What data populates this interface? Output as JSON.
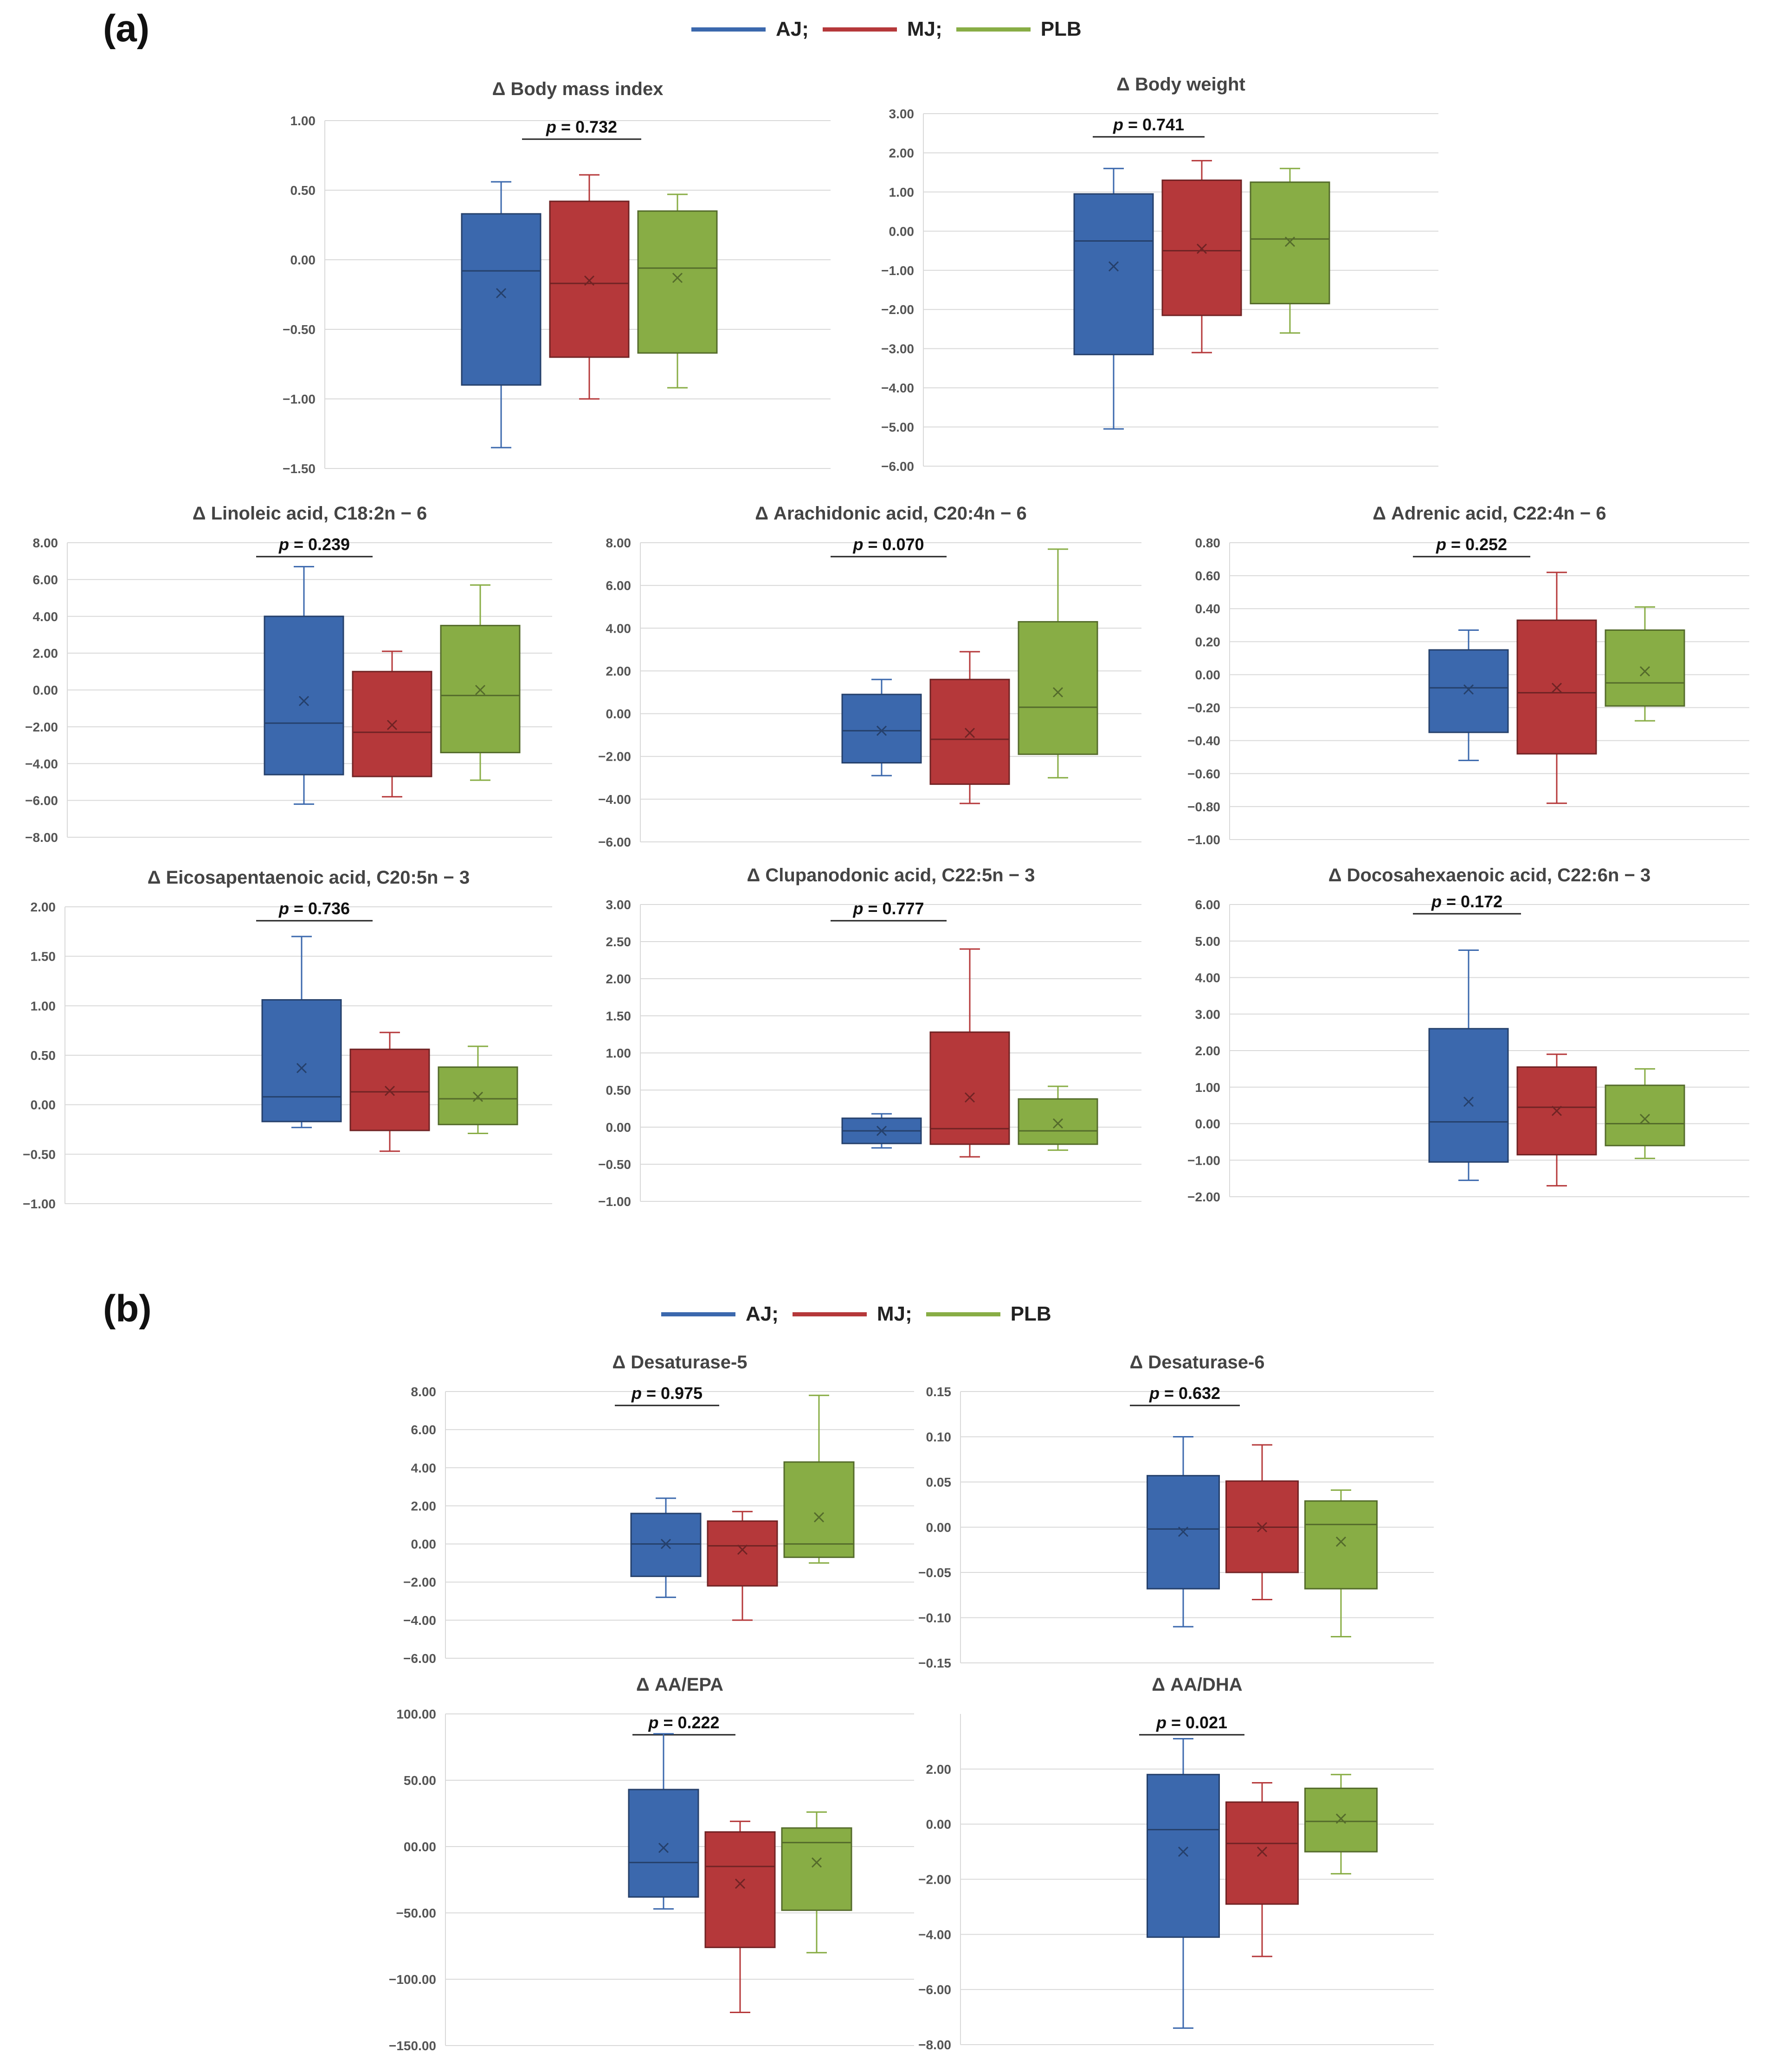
{
  "panels": {
    "a": "(a)",
    "b": "(b)"
  },
  "legend": {
    "items": [
      {
        "label": "AJ;",
        "color": "#3b68ad"
      },
      {
        "label": "MJ;",
        "color": "#b5383a"
      },
      {
        "label": "PLB",
        "color": "#88ad45"
      }
    ]
  },
  "chart_data": [
    {
      "type": "boxplot",
      "title": "Δ Body mass index",
      "p_label": "p",
      "p_value": "= 0.732",
      "ylim": [
        -1.5,
        1.0
      ],
      "ticks": [
        "1.00",
        "0.50",
        "0.00",
        "−0.50",
        "−1.00",
        "−1.50"
      ],
      "boxes": [
        {
          "group": "AJ",
          "min": -1.35,
          "q1": -0.9,
          "median": -0.08,
          "q3": 0.33,
          "max": 0.56,
          "mean": -0.24
        },
        {
          "group": "MJ",
          "min": -1.0,
          "q1": -0.7,
          "median": -0.17,
          "q3": 0.42,
          "max": 0.61,
          "mean": -0.15
        },
        {
          "group": "PLB",
          "min": -0.92,
          "q1": -0.67,
          "median": -0.06,
          "q3": 0.35,
          "max": 0.47,
          "mean": -0.13
        }
      ]
    },
    {
      "type": "boxplot",
      "title": "Δ Body weight",
      "p_label": "p",
      "p_value": "= 0.741",
      "ylim": [
        -6.0,
        3.0
      ],
      "ticks": [
        "3.00",
        "2.00",
        "1.00",
        "0.00",
        "−1.00",
        "−2.00",
        "−3.00",
        "−4.00",
        "−5.00",
        "−6.00"
      ],
      "boxes": [
        {
          "group": "AJ",
          "min": -5.05,
          "q1": -3.15,
          "median": -0.25,
          "q3": 0.95,
          "max": 1.6,
          "mean": -0.9
        },
        {
          "group": "MJ",
          "min": -3.1,
          "q1": -2.15,
          "median": -0.5,
          "q3": 1.3,
          "max": 1.8,
          "mean": -0.45
        },
        {
          "group": "PLB",
          "min": -2.6,
          "q1": -1.85,
          "median": -0.2,
          "q3": 1.25,
          "max": 1.6,
          "mean": -0.27
        }
      ]
    },
    {
      "type": "boxplot",
      "title": "Δ Linoleic acid, C18:2n − 6",
      "p_label": "p",
      "p_value": "= 0.239",
      "ylim": [
        -8.0,
        8.0
      ],
      "ticks": [
        "8.00",
        "6.00",
        "4.00",
        "2.00",
        "0.00",
        "−2.00",
        "−4.00",
        "−6.00",
        "−8.00"
      ],
      "boxes": [
        {
          "group": "AJ",
          "min": -6.2,
          "q1": -4.6,
          "median": -1.8,
          "q3": 4.0,
          "max": 6.7,
          "mean": -0.6
        },
        {
          "group": "MJ",
          "min": -5.8,
          "q1": -4.7,
          "median": -2.3,
          "q3": 1.0,
          "max": 2.1,
          "mean": -1.9
        },
        {
          "group": "PLB",
          "min": -4.9,
          "q1": -3.4,
          "median": -0.3,
          "q3": 3.5,
          "max": 5.7,
          "mean": 0.0
        }
      ]
    },
    {
      "type": "boxplot",
      "title": "Δ Arachidonic acid, C20:4n − 6",
      "p_label": "p",
      "p_value": "= 0.070",
      "ylim": [
        -6.0,
        8.0
      ],
      "ticks": [
        "8.00",
        "6.00",
        "4.00",
        "2.00",
        "0.00",
        "−2.00",
        "−4.00",
        "−6.00"
      ],
      "boxes": [
        {
          "group": "AJ",
          "min": -2.9,
          "q1": -2.3,
          "median": -0.8,
          "q3": 0.9,
          "max": 1.6,
          "mean": -0.8
        },
        {
          "group": "MJ",
          "min": -4.2,
          "q1": -3.3,
          "median": -1.2,
          "q3": 1.6,
          "max": 2.9,
          "mean": -0.9
        },
        {
          "group": "PLB",
          "min": -3.0,
          "q1": -1.9,
          "median": 0.3,
          "q3": 4.3,
          "max": 7.7,
          "mean": 1.0
        }
      ]
    },
    {
      "type": "boxplot",
      "title": "Δ Adrenic acid, C22:4n − 6",
      "p_label": "p",
      "p_value": "= 0.252",
      "ylim": [
        -1.0,
        0.8
      ],
      "ticks": [
        "0.80",
        "0.60",
        "0.40",
        "0.20",
        "0.00",
        "−0.20",
        "−0.40",
        "−0.60",
        "−0.80",
        "−1.00"
      ],
      "boxes": [
        {
          "group": "AJ",
          "min": -0.52,
          "q1": -0.35,
          "median": -0.08,
          "q3": 0.15,
          "max": 0.27,
          "mean": -0.09
        },
        {
          "group": "MJ",
          "min": -0.78,
          "q1": -0.48,
          "median": -0.11,
          "q3": 0.33,
          "max": 0.62,
          "mean": -0.08
        },
        {
          "group": "PLB",
          "min": -0.28,
          "q1": -0.19,
          "median": -0.05,
          "q3": 0.27,
          "max": 0.41,
          "mean": 0.02
        }
      ]
    },
    {
      "type": "boxplot",
      "title": "Δ Eicosapentaenoic acid, C20:5n − 3",
      "p_label": "p",
      "p_value": "= 0.736",
      "ylim": [
        -1.0,
        2.0
      ],
      "ticks": [
        "2.00",
        "1.50",
        "1.00",
        "0.50",
        "0.00",
        "−0.50",
        "−1.00"
      ],
      "boxes": [
        {
          "group": "AJ",
          "min": -0.23,
          "q1": -0.17,
          "median": 0.08,
          "q3": 1.06,
          "max": 1.7,
          "mean": 0.37
        },
        {
          "group": "MJ",
          "min": -0.47,
          "q1": -0.26,
          "median": 0.13,
          "q3": 0.56,
          "max": 0.73,
          "mean": 0.14
        },
        {
          "group": "PLB",
          "min": -0.29,
          "q1": -0.2,
          "median": 0.06,
          "q3": 0.38,
          "max": 0.59,
          "mean": 0.08
        }
      ]
    },
    {
      "type": "boxplot",
      "title": "Δ Clupanodonic acid, C22:5n − 3",
      "p_label": "p",
      "p_value": "= 0.777",
      "ylim": [
        -1.0,
        3.0
      ],
      "ticks": [
        "3.00",
        "2.50",
        "2.00",
        "1.50",
        "1.00",
        "0.50",
        "0.00",
        "−0.50",
        "−1.00"
      ],
      "boxes": [
        {
          "group": "AJ",
          "min": -0.28,
          "q1": -0.22,
          "median": -0.05,
          "q3": 0.12,
          "max": 0.18,
          "mean": -0.05
        },
        {
          "group": "MJ",
          "min": -0.4,
          "q1": -0.23,
          "median": -0.02,
          "q3": 1.28,
          "max": 2.4,
          "mean": 0.4
        },
        {
          "group": "PLB",
          "min": -0.31,
          "q1": -0.23,
          "median": -0.05,
          "q3": 0.38,
          "max": 0.55,
          "mean": 0.05
        }
      ]
    },
    {
      "type": "boxplot",
      "title": "Δ Docosahexaenoic acid, C22:6n − 3",
      "p_label": "p",
      "p_value": "= 0.172",
      "ylim": [
        -2.0,
        6.0
      ],
      "ticks": [
        "6.00",
        "5.00",
        "4.00",
        "3.00",
        "2.00",
        "1.00",
        "0.00",
        "−1.00",
        "−2.00"
      ],
      "boxes": [
        {
          "group": "AJ",
          "min": -1.55,
          "q1": -1.05,
          "median": 0.05,
          "q3": 2.6,
          "max": 4.75,
          "mean": 0.6
        },
        {
          "group": "MJ",
          "min": -1.7,
          "q1": -0.85,
          "median": 0.45,
          "q3": 1.55,
          "max": 1.9,
          "mean": 0.35
        },
        {
          "group": "PLB",
          "min": -0.95,
          "q1": -0.6,
          "median": 0.0,
          "q3": 1.05,
          "max": 1.5,
          "mean": 0.13
        }
      ]
    },
    {
      "type": "boxplot",
      "title": "Δ Desaturase-5",
      "p_label": "p",
      "p_value": "= 0.975",
      "ylim": [
        -6.0,
        8.0
      ],
      "ticks": [
        "8.00",
        "6.00",
        "4.00",
        "2.00",
        "0.00",
        "−2.00",
        "−4.00",
        "−6.00"
      ],
      "boxes": [
        {
          "group": "AJ",
          "min": -2.8,
          "q1": -1.7,
          "median": 0.0,
          "q3": 1.6,
          "max": 2.4,
          "mean": 0.0
        },
        {
          "group": "MJ",
          "min": -4.0,
          "q1": -2.2,
          "median": -0.1,
          "q3": 1.2,
          "max": 1.7,
          "mean": -0.3
        },
        {
          "group": "PLB",
          "min": -1.0,
          "q1": -0.7,
          "median": 0.0,
          "q3": 4.3,
          "max": 7.8,
          "mean": 1.4
        }
      ]
    },
    {
      "type": "boxplot",
      "title": "Δ Desaturase-6",
      "p_label": "p",
      "p_value": "= 0.632",
      "ylim": [
        -0.15,
        0.15
      ],
      "ticks": [
        "0.15",
        "0.10",
        "0.05",
        "0.00",
        "−0.05",
        "−0.10",
        "−0.15"
      ],
      "boxes": [
        {
          "group": "AJ",
          "min": -0.11,
          "q1": -0.068,
          "median": -0.002,
          "q3": 0.057,
          "max": 0.1,
          "mean": -0.005
        },
        {
          "group": "MJ",
          "min": -0.08,
          "q1": -0.05,
          "median": 0.0,
          "q3": 0.051,
          "max": 0.091,
          "mean": 0.0
        },
        {
          "group": "PLB",
          "min": -0.121,
          "q1": -0.068,
          "median": 0.003,
          "q3": 0.029,
          "max": 0.041,
          "mean": -0.016
        }
      ]
    },
    {
      "type": "boxplot",
      "title": "Δ AA/EPA",
      "p_label": "p",
      "p_value": "= 0.222",
      "ylim": [
        -150,
        100
      ],
      "ticks": [
        "100.00",
        "50.00",
        "00.00",
        "−50.00",
        "−100.00",
        "−150.00"
      ],
      "boxes": [
        {
          "group": "AJ",
          "min": -47,
          "q1": -38,
          "median": -12,
          "q3": 43,
          "max": 85,
          "mean": -1
        },
        {
          "group": "MJ",
          "min": -125,
          "q1": -76,
          "median": -15,
          "q3": 11,
          "max": 19,
          "mean": -28
        },
        {
          "group": "PLB",
          "min": -80,
          "q1": -48,
          "median": 3,
          "q3": 14,
          "max": 26,
          "mean": -12
        }
      ]
    },
    {
      "type": "boxplot",
      "title": "Δ AA/DHA",
      "p_label": "p",
      "p_value": "= 0.021",
      "ylim": [
        -8.0,
        4.0
      ],
      "ticks": [
        "2.00",
        "0.00",
        "−2.00",
        "−4.00",
        "−6.00",
        "−8.00"
      ],
      "boxes": [
        {
          "group": "AJ",
          "min": -7.4,
          "q1": -4.1,
          "median": -0.2,
          "q3": 1.8,
          "max": 3.1,
          "mean": -1.0
        },
        {
          "group": "MJ",
          "min": -4.8,
          "q1": -2.9,
          "median": -0.7,
          "q3": 0.8,
          "max": 1.5,
          "mean": -1.0
        },
        {
          "group": "PLB",
          "min": -1.8,
          "q1": -1.0,
          "median": 0.1,
          "q3": 1.3,
          "max": 1.8,
          "mean": 0.2
        }
      ]
    }
  ]
}
